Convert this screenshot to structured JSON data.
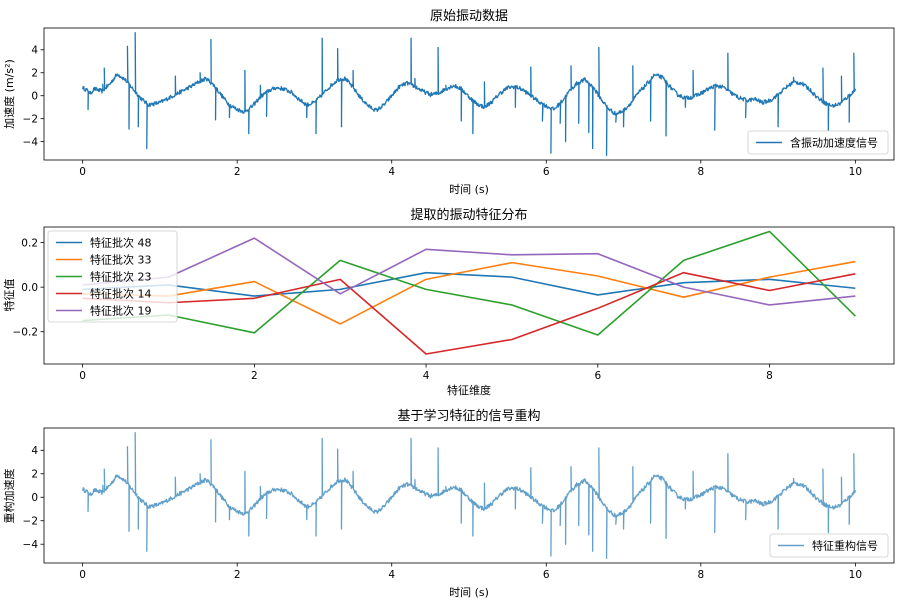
{
  "chart_data": [
    {
      "type": "line",
      "title": "原始振动数据",
      "xlabel": "时间 (s)",
      "ylabel": "加速度 (m/s²)",
      "xlim": [
        -0.5,
        10.5
      ],
      "ylim": [
        -5.6,
        5.9
      ],
      "xticks": [
        0,
        2,
        4,
        6,
        8,
        10
      ],
      "yticks": [
        -4,
        -2,
        0,
        2,
        4
      ],
      "xtick_labels": [
        "0",
        "2",
        "4",
        "6",
        "8",
        "10"
      ],
      "ytick_labels": [
        "−4",
        "−2",
        "0",
        "2",
        "4"
      ],
      "legend": {
        "position": "lower right",
        "entries": [
          "含振动加速度信号"
        ]
      },
      "grid": false,
      "series": [
        {
          "name": "含振动加速度信号",
          "color": "#1f77b4",
          "points": [
            [
              0.0,
              0.7
            ],
            [
              0.05,
              0.5
            ],
            [
              0.1,
              0.2
            ],
            [
              0.15,
              0.6
            ],
            [
              0.25,
              0.4
            ],
            [
              0.35,
              1.0
            ],
            [
              0.45,
              1.9
            ],
            [
              0.55,
              1.4
            ],
            [
              0.65,
              0.6
            ],
            [
              0.75,
              -0.2
            ],
            [
              0.85,
              -0.8
            ],
            [
              1.0,
              -0.6
            ],
            [
              1.2,
              0.1
            ],
            [
              1.4,
              0.8
            ],
            [
              1.5,
              1.2
            ],
            [
              1.6,
              1.5
            ],
            [
              1.7,
              0.9
            ],
            [
              1.8,
              0.0
            ],
            [
              1.9,
              -0.8
            ],
            [
              2.0,
              -1.2
            ],
            [
              2.1,
              -1.4
            ],
            [
              2.2,
              -0.9
            ],
            [
              2.3,
              -0.1
            ],
            [
              2.4,
              0.4
            ],
            [
              2.5,
              0.7
            ],
            [
              2.6,
              0.6
            ],
            [
              2.7,
              0.3
            ],
            [
              2.8,
              -0.3
            ],
            [
              2.9,
              -0.8
            ],
            [
              3.0,
              -0.6
            ],
            [
              3.1,
              0.1
            ],
            [
              3.2,
              0.8
            ],
            [
              3.3,
              1.4
            ],
            [
              3.4,
              1.5
            ],
            [
              3.5,
              0.7
            ],
            [
              3.6,
              -0.2
            ],
            [
              3.7,
              -0.9
            ],
            [
              3.8,
              -1.3
            ],
            [
              3.9,
              -0.8
            ],
            [
              4.0,
              0.0
            ],
            [
              4.1,
              0.8
            ],
            [
              4.2,
              1.1
            ],
            [
              4.3,
              0.8
            ],
            [
              4.4,
              0.4
            ],
            [
              4.5,
              0.1
            ],
            [
              4.6,
              0.2
            ],
            [
              4.7,
              0.6
            ],
            [
              4.8,
              0.9
            ],
            [
              4.9,
              0.6
            ],
            [
              5.0,
              -0.1
            ],
            [
              5.1,
              -0.7
            ],
            [
              5.2,
              -1.0
            ],
            [
              5.3,
              -0.5
            ],
            [
              5.4,
              0.2
            ],
            [
              5.5,
              0.7
            ],
            [
              5.6,
              0.8
            ],
            [
              5.7,
              0.5
            ],
            [
              5.8,
              0.0
            ],
            [
              5.9,
              -0.5
            ],
            [
              6.0,
              -0.9
            ],
            [
              6.1,
              -1.2
            ],
            [
              6.2,
              -0.5
            ],
            [
              6.3,
              0.4
            ],
            [
              6.4,
              1.1
            ],
            [
              6.5,
              1.4
            ],
            [
              6.6,
              0.8
            ],
            [
              6.7,
              -0.2
            ],
            [
              6.8,
              -1.1
            ],
            [
              6.9,
              -1.6
            ],
            [
              7.0,
              -1.3
            ],
            [
              7.1,
              -0.6
            ],
            [
              7.2,
              0.3
            ],
            [
              7.3,
              1.0
            ],
            [
              7.4,
              1.8
            ],
            [
              7.5,
              1.6
            ],
            [
              7.6,
              0.8
            ],
            [
              7.7,
              0.1
            ],
            [
              7.8,
              -0.2
            ],
            [
              7.9,
              -0.1
            ],
            [
              8.0,
              0.2
            ],
            [
              8.1,
              0.6
            ],
            [
              8.2,
              0.9
            ],
            [
              8.3,
              0.7
            ],
            [
              8.4,
              0.2
            ],
            [
              8.5,
              -0.2
            ],
            [
              8.6,
              -0.4
            ],
            [
              8.7,
              -0.3
            ],
            [
              8.8,
              -0.6
            ],
            [
              8.9,
              -0.4
            ],
            [
              9.0,
              0.1
            ],
            [
              9.1,
              0.7
            ],
            [
              9.2,
              1.2
            ],
            [
              9.3,
              1.1
            ],
            [
              9.4,
              0.6
            ],
            [
              9.5,
              -0.1
            ],
            [
              9.6,
              -0.6
            ],
            [
              9.7,
              -0.9
            ],
            [
              9.8,
              -0.7
            ],
            [
              9.9,
              -0.1
            ],
            [
              10.0,
              0.5
            ]
          ],
          "spikes": [
            [
              0.07,
              -1.2
            ],
            [
              0.26,
              1.0
            ],
            [
              0.28,
              2.4
            ],
            [
              0.58,
              4.3
            ],
            [
              0.68,
              5.5
            ],
            [
              0.6,
              -2.9
            ],
            [
              0.72,
              -2.7
            ],
            [
              0.83,
              -4.6
            ],
            [
              1.2,
              1.7
            ],
            [
              1.52,
              2.0
            ],
            [
              1.66,
              4.9
            ],
            [
              1.72,
              -2.1
            ],
            [
              1.9,
              -1.9
            ],
            [
              2.1,
              2.2
            ],
            [
              2.15,
              -3.3
            ],
            [
              2.3,
              0.9
            ],
            [
              2.38,
              -1.8
            ],
            [
              2.9,
              -1.9
            ],
            [
              3.02,
              -3.3
            ],
            [
              3.1,
              5.0
            ],
            [
              3.3,
              4.1
            ],
            [
              3.35,
              -2.7
            ],
            [
              3.5,
              2.2
            ],
            [
              4.25,
              5.0
            ],
            [
              4.3,
              1.5
            ],
            [
              4.6,
              4.2
            ],
            [
              4.7,
              0.9
            ],
            [
              4.9,
              -2.2
            ],
            [
              5.05,
              -3.3
            ],
            [
              5.2,
              1.2
            ],
            [
              5.6,
              -1.0
            ],
            [
              5.8,
              2.5
            ],
            [
              5.95,
              -2.2
            ],
            [
              6.06,
              -5.0
            ],
            [
              6.18,
              -2.4
            ],
            [
              6.25,
              -4.0
            ],
            [
              6.32,
              2.6
            ],
            [
              6.42,
              -2.4
            ],
            [
              6.55,
              -3.2
            ],
            [
              6.6,
              -4.6
            ],
            [
              6.68,
              4.2
            ],
            [
              6.78,
              -5.2
            ],
            [
              6.9,
              -2.3
            ],
            [
              7.0,
              -2.7
            ],
            [
              7.12,
              2.6
            ],
            [
              7.35,
              -2.2
            ],
            [
              7.55,
              -3.5
            ],
            [
              7.8,
              -1.0
            ],
            [
              7.9,
              2.2
            ],
            [
              8.18,
              -3.0
            ],
            [
              8.35,
              3.7
            ],
            [
              8.58,
              -1.9
            ],
            [
              9.0,
              -2.7
            ],
            [
              9.2,
              1.6
            ],
            [
              9.58,
              2.4
            ],
            [
              9.65,
              -3.0
            ],
            [
              9.82,
              1.7
            ],
            [
              9.92,
              -2.3
            ],
            [
              9.98,
              3.7
            ]
          ]
        }
      ]
    },
    {
      "type": "line",
      "title": "提取的振动特征分布",
      "xlabel": "特征维度",
      "ylabel": "特征值",
      "xlim": [
        -0.45,
        9.45
      ],
      "ylim": [
        -0.345,
        0.27
      ],
      "xticks": [
        0,
        2,
        4,
        6,
        8
      ],
      "yticks": [
        -0.2,
        0.0,
        0.2
      ],
      "xtick_labels": [
        "0",
        "2",
        "4",
        "6",
        "8"
      ],
      "ytick_labels": [
        "−0.2",
        "0.0",
        "0.2"
      ],
      "legend": {
        "position": "upper left",
        "entries": [
          "特征批次 48",
          "特征批次 33",
          "特征批次 23",
          "特征批次 14",
          "特征批次 19"
        ]
      },
      "grid": false,
      "x": [
        0,
        1,
        2,
        3,
        4,
        5,
        6,
        7,
        8,
        9
      ],
      "series": [
        {
          "name": "特征批次 48",
          "color": "#1f77b4",
          "values": [
            -0.01,
            0.01,
            -0.04,
            -0.01,
            0.065,
            0.045,
            -0.035,
            0.02,
            0.035,
            -0.005
          ]
        },
        {
          "name": "特征批次 33",
          "color": "#ff7f0e",
          "values": [
            -0.03,
            -0.04,
            0.025,
            -0.165,
            0.035,
            0.11,
            0.05,
            -0.045,
            0.045,
            0.115
          ]
        },
        {
          "name": "特征批次 23",
          "color": "#2ca02c",
          "values": [
            -0.15,
            -0.125,
            -0.205,
            0.12,
            -0.01,
            -0.08,
            -0.215,
            0.12,
            0.25,
            -0.13
          ]
        },
        {
          "name": "特征批次 14",
          "color": "#d62728",
          "values": [
            -0.05,
            -0.07,
            -0.05,
            0.035,
            -0.3,
            -0.235,
            -0.095,
            0.065,
            -0.015,
            0.06
          ]
        },
        {
          "name": "特征批次 19",
          "color": "#9467bd",
          "values": [
            0.01,
            0.045,
            0.22,
            -0.03,
            0.17,
            0.145,
            0.15,
            0.0,
            -0.08,
            -0.04
          ]
        }
      ]
    },
    {
      "type": "line",
      "title": "基于学习特征的信号重构",
      "xlabel": "时间 (s)",
      "ylabel": "重构加速度",
      "xlim": [
        -0.5,
        10.5
      ],
      "ylim": [
        -5.6,
        5.9
      ],
      "xticks": [
        0,
        2,
        4,
        6,
        8,
        10
      ],
      "yticks": [
        -4,
        -2,
        0,
        2,
        4
      ],
      "xtick_labels": [
        "0",
        "2",
        "4",
        "6",
        "8",
        "10"
      ],
      "ytick_labels": [
        "−4",
        "−2",
        "0",
        "2",
        "4"
      ],
      "legend": {
        "position": "lower right",
        "entries": [
          "特征重构信号"
        ]
      },
      "grid": false,
      "series": [
        {
          "name": "特征重构信号",
          "color": "#1f77b4",
          "opacity": 0.7,
          "same_as_series_of_chart": 0
        }
      ]
    }
  ]
}
